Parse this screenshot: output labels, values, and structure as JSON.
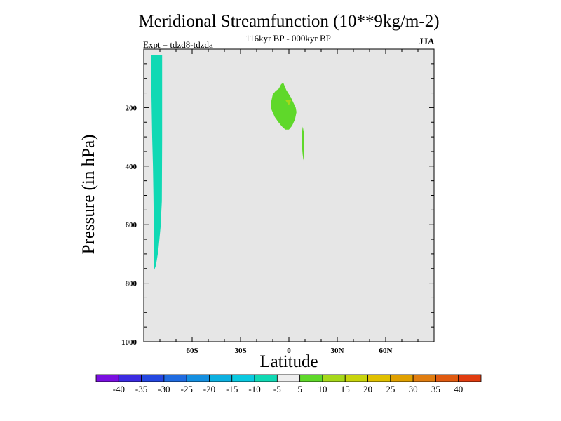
{
  "chart_data": {
    "type": "contour",
    "title": "Meridional Streamfunction (10**9kg/m-2)",
    "subtitle": "116kyr BP - 000kyr BP",
    "experiment": "Expt = tdzd8-tdzda",
    "season": "JJA",
    "xlabel": "Latitude",
    "ylabel": "Pressure (in hPa)",
    "xlim": [
      -90,
      90
    ],
    "ylim": [
      1000,
      0
    ],
    "x_ticks": [
      {
        "value": -60,
        "label": "60S"
      },
      {
        "value": -30,
        "label": "30S"
      },
      {
        "value": 0,
        "label": "0"
      },
      {
        "value": 30,
        "label": "30N"
      },
      {
        "value": 60,
        "label": "60N"
      }
    ],
    "y_ticks": [
      {
        "value": 200,
        "label": "200"
      },
      {
        "value": 400,
        "label": "400"
      },
      {
        "value": 600,
        "label": "600"
      },
      {
        "value": 800,
        "label": "800"
      },
      {
        "value": 1000,
        "label": "1000"
      }
    ],
    "background_color": "#e6e6e6",
    "regions": [
      {
        "name": "negative-cell-antarctic",
        "range": "-10 to -5",
        "color": "#10d9b4",
        "polygon": [
          [
            -85.6,
            20
          ],
          [
            -78.6,
            20
          ],
          [
            -78.6,
            310
          ],
          [
            -78.8,
            520
          ],
          [
            -79.6,
            610
          ],
          [
            -81,
            690
          ],
          [
            -82.5,
            740
          ],
          [
            -83.5,
            755
          ],
          [
            -83.6,
            700
          ],
          [
            -83.8,
            600
          ],
          [
            -84,
            500
          ],
          [
            -84.3,
            400
          ],
          [
            -84.8,
            300
          ],
          [
            -85.2,
            160
          ],
          [
            -85.6,
            40
          ]
        ]
      },
      {
        "name": "positive-cell-equatorial",
        "range": "5 to 10",
        "color": "#5fd82a",
        "polygon": [
          [
            -3.5,
            115
          ],
          [
            -1.6,
            140
          ],
          [
            1.2,
            165
          ],
          [
            4.2,
            200
          ],
          [
            4.7,
            215
          ],
          [
            3.8,
            240
          ],
          [
            2,
            262
          ],
          [
            0,
            275
          ],
          [
            -2.2,
            275
          ],
          [
            -4.2,
            265
          ],
          [
            -6.5,
            250
          ],
          [
            -8.8,
            232
          ],
          [
            -10.9,
            205
          ],
          [
            -11,
            180
          ],
          [
            -10,
            155
          ],
          [
            -8.2,
            143
          ],
          [
            -6.2,
            135
          ],
          [
            -4.8,
            120
          ]
        ]
      },
      {
        "name": "positive-cell-north",
        "range": "5 to 10",
        "color": "#5fd82a",
        "polygon": [
          [
            8.6,
            265
          ],
          [
            9.2,
            285
          ],
          [
            9.5,
            320
          ],
          [
            9.4,
            360
          ],
          [
            9,
            380
          ],
          [
            8.5,
            360
          ],
          [
            7.9,
            320
          ],
          [
            7.9,
            290
          ]
        ]
      },
      {
        "name": "positive-core-equatorial",
        "range": "10 to 15",
        "color": "#a6d81a",
        "polygon": [
          [
            -2.1,
            175
          ],
          [
            1.4,
            175
          ],
          [
            0,
            192
          ]
        ]
      }
    ],
    "colorbar": {
      "colors": [
        "#7a0fe0",
        "#3b2be0",
        "#2447e0",
        "#1f6be0",
        "#148fe0",
        "#0db0e0",
        "#0ac9e0",
        "#10d9b4",
        "#eeeeee",
        "#5fd82a",
        "#a6d81a",
        "#c8d40c",
        "#e0c000",
        "#e0a000",
        "#e07d10",
        "#e05a10",
        "#e03c10"
      ],
      "labels": [
        "-40",
        "-35",
        "-30",
        "-25",
        "-20",
        "-15",
        "-10",
        "-5",
        "5",
        "10",
        "15",
        "20",
        "25",
        "30",
        "35",
        "40"
      ]
    }
  }
}
